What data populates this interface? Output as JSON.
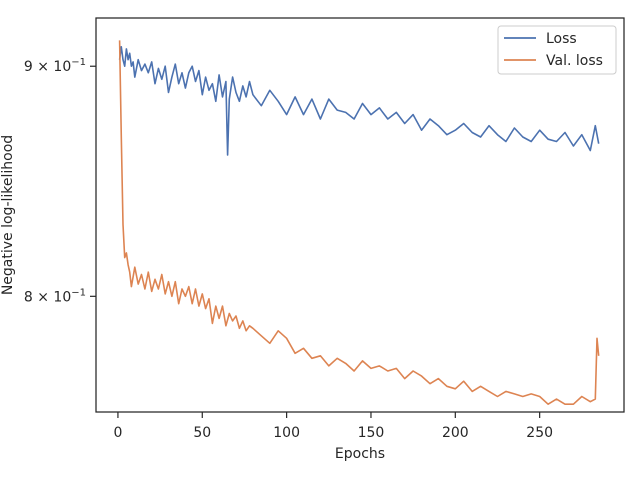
{
  "chart_data": {
    "type": "line",
    "xlabel": "Epochs",
    "ylabel": "Negative log-likelihood",
    "xlim": [
      -13,
      300
    ],
    "ylim": [
      0.754,
      0.9225
    ],
    "y_scale": "log",
    "grid": false,
    "legend_position": "top-right",
    "x_ticks": [
      {
        "value": 0,
        "label": "0"
      },
      {
        "value": 50,
        "label": "50"
      },
      {
        "value": 100,
        "label": "100"
      },
      {
        "value": 150,
        "label": "150"
      },
      {
        "value": 200,
        "label": "200"
      },
      {
        "value": 250,
        "label": "250"
      }
    ],
    "y_ticks": [
      {
        "value": 0.9,
        "label": "9 × 10",
        "exp": "−1"
      },
      {
        "value": 0.8,
        "label": "8 × 10",
        "exp": "−1"
      }
    ],
    "series": [
      {
        "name": "Loss",
        "color": "#4c72b0",
        "x": [
          1,
          2,
          3,
          4,
          5,
          6,
          7,
          8,
          9,
          10,
          12,
          14,
          16,
          18,
          20,
          22,
          24,
          26,
          28,
          30,
          32,
          34,
          36,
          38,
          40,
          42,
          44,
          46,
          48,
          50,
          52,
          54,
          56,
          58,
          60,
          62,
          64,
          65,
          66,
          68,
          70,
          72,
          74,
          76,
          78,
          80,
          85,
          90,
          95,
          100,
          105,
          110,
          115,
          120,
          125,
          130,
          135,
          140,
          145,
          150,
          155,
          160,
          165,
          170,
          175,
          180,
          185,
          190,
          195,
          200,
          205,
          210,
          215,
          220,
          225,
          230,
          235,
          240,
          245,
          250,
          255,
          260,
          265,
          270,
          275,
          280,
          283,
          285
        ],
        "values": [
          0.903,
          0.909,
          0.903,
          0.9,
          0.908,
          0.903,
          0.906,
          0.9,
          0.902,
          0.895,
          0.903,
          0.898,
          0.901,
          0.897,
          0.902,
          0.892,
          0.899,
          0.894,
          0.9,
          0.888,
          0.895,
          0.901,
          0.892,
          0.897,
          0.89,
          0.897,
          0.9,
          0.893,
          0.898,
          0.887,
          0.895,
          0.889,
          0.892,
          0.884,
          0.896,
          0.886,
          0.893,
          0.86,
          0.885,
          0.895,
          0.888,
          0.884,
          0.891,
          0.886,
          0.893,
          0.887,
          0.882,
          0.889,
          0.884,
          0.878,
          0.886,
          0.878,
          0.885,
          0.876,
          0.885,
          0.88,
          0.879,
          0.876,
          0.883,
          0.878,
          0.881,
          0.876,
          0.879,
          0.874,
          0.878,
          0.871,
          0.876,
          0.873,
          0.869,
          0.871,
          0.874,
          0.87,
          0.868,
          0.873,
          0.869,
          0.866,
          0.872,
          0.868,
          0.866,
          0.871,
          0.867,
          0.866,
          0.87,
          0.864,
          0.869,
          0.862,
          0.873,
          0.865
        ]
      },
      {
        "name": "Val. loss",
        "color": "#dd8452",
        "x": [
          1,
          2,
          3,
          4,
          5,
          6,
          7,
          8,
          10,
          12,
          14,
          16,
          18,
          20,
          22,
          24,
          26,
          28,
          30,
          32,
          34,
          36,
          38,
          40,
          42,
          44,
          46,
          48,
          50,
          52,
          54,
          56,
          58,
          60,
          62,
          64,
          66,
          68,
          70,
          72,
          74,
          76,
          78,
          80,
          85,
          90,
          95,
          100,
          105,
          110,
          115,
          120,
          125,
          130,
          135,
          140,
          145,
          150,
          155,
          160,
          165,
          170,
          175,
          180,
          185,
          190,
          195,
          200,
          205,
          210,
          215,
          220,
          225,
          230,
          235,
          240,
          245,
          250,
          255,
          260,
          265,
          270,
          275,
          280,
          283,
          284,
          285
        ],
        "values": [
          0.912,
          0.868,
          0.83,
          0.816,
          0.818,
          0.813,
          0.81,
          0.804,
          0.812,
          0.805,
          0.809,
          0.803,
          0.81,
          0.802,
          0.807,
          0.803,
          0.809,
          0.801,
          0.806,
          0.8,
          0.806,
          0.797,
          0.803,
          0.8,
          0.804,
          0.797,
          0.803,
          0.796,
          0.801,
          0.795,
          0.799,
          0.789,
          0.796,
          0.791,
          0.796,
          0.788,
          0.793,
          0.79,
          0.792,
          0.787,
          0.79,
          0.786,
          0.788,
          0.787,
          0.784,
          0.781,
          0.786,
          0.783,
          0.777,
          0.779,
          0.775,
          0.776,
          0.772,
          0.775,
          0.773,
          0.77,
          0.774,
          0.771,
          0.772,
          0.77,
          0.771,
          0.767,
          0.77,
          0.768,
          0.765,
          0.767,
          0.764,
          0.763,
          0.766,
          0.762,
          0.764,
          0.762,
          0.76,
          0.762,
          0.761,
          0.76,
          0.761,
          0.76,
          0.757,
          0.759,
          0.757,
          0.757,
          0.76,
          0.758,
          0.759,
          0.783,
          0.776
        ]
      }
    ]
  }
}
